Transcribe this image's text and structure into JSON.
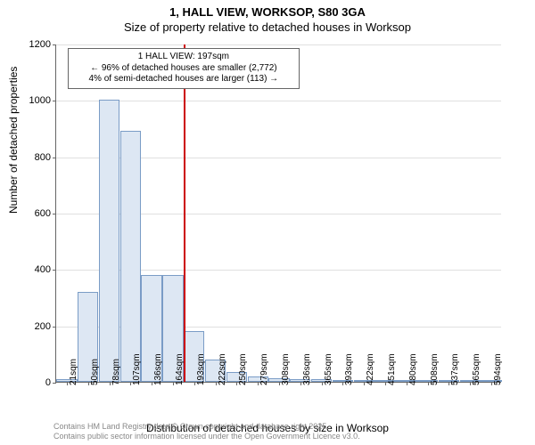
{
  "chart": {
    "type": "histogram",
    "title_line1": "1, HALL VIEW, WORKSOP, S80 3GA",
    "title_line2": "Size of property relative to detached houses in Worksop",
    "ylabel": "Number of detached properties",
    "xlabel": "Distribution of detached houses by size in Worksop",
    "ylim_max": 1200,
    "ytick_step": 200,
    "yticks": [
      0,
      200,
      400,
      600,
      800,
      1000,
      1200
    ],
    "categories": [
      "21sqm",
      "50sqm",
      "78sqm",
      "107sqm",
      "136sqm",
      "164sqm",
      "193sqm",
      "222sqm",
      "250sqm",
      "279sqm",
      "308sqm",
      "336sqm",
      "365sqm",
      "393sqm",
      "422sqm",
      "451sqm",
      "480sqm",
      "508sqm",
      "537sqm",
      "565sqm",
      "594sqm"
    ],
    "values": [
      10,
      320,
      1000,
      890,
      380,
      380,
      180,
      80,
      35,
      20,
      12,
      10,
      8,
      6,
      4,
      4,
      3,
      2,
      2,
      2,
      1
    ],
    "bar_fill": "#dde7f3",
    "bar_border": "#7a9cc6",
    "background_color": "#ffffff",
    "grid_color": "#e0e0e0",
    "axis_color": "#666666",
    "reference": {
      "bin_index_after": 6,
      "color": "#cc0000",
      "box_line1": "1 HALL VIEW: 197sqm",
      "box_line2": "← 96% of detached houses are smaller (2,772)",
      "box_line3": "4% of semi-detached houses are larger (113) →"
    },
    "footer_line1": "Contains HM Land Registry data © Crown copyright and database right 2025.",
    "footer_line2": "Contains public sector information licensed under the Open Government Licence v3.0."
  }
}
